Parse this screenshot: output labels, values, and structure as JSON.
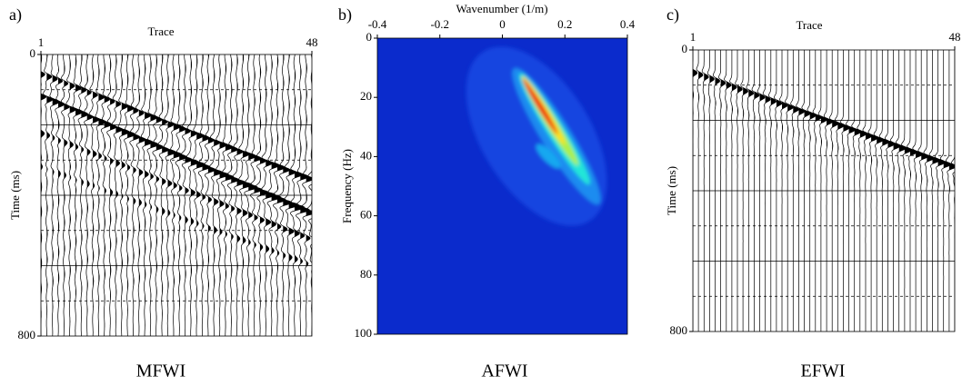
{
  "chart_data": [
    {
      "type": "wiggle",
      "panel": "a)",
      "title": "MFWI",
      "xlabel": "Trace",
      "ylabel": "Time (ms)",
      "xlim": [
        1,
        48
      ],
      "xticks": [
        1,
        48
      ],
      "ylim": [
        0,
        800
      ],
      "yticks": [
        0,
        800
      ]
    },
    {
      "type": "heatmap",
      "panel": "b)",
      "title": "AFWI",
      "xlabel": "Wavenumber (1/m)",
      "ylabel": "Frequency (Hz)",
      "xlim": [
        -0.4,
        0.4
      ],
      "xticks": [
        -0.4,
        -0.2,
        0,
        0.2,
        0.4
      ],
      "ylim": [
        0,
        100
      ],
      "yticks": [
        0,
        20,
        40,
        60,
        80,
        100
      ],
      "y_inverted": true
    },
    {
      "type": "wiggle",
      "panel": "c)",
      "title": "EFWI",
      "xlabel": "Trace",
      "ylabel": "Time (ms)",
      "xlim": [
        1,
        48
      ],
      "xticks": [
        1,
        48
      ],
      "ylim": [
        0,
        800
      ],
      "yticks": [
        0,
        800
      ]
    }
  ]
}
